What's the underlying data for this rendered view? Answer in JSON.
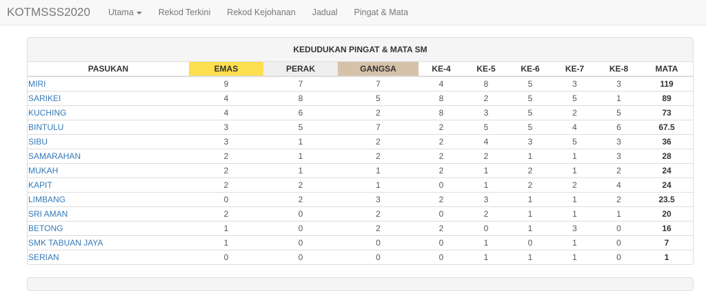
{
  "navbar": {
    "brand": "KOTMSSS2020",
    "items": [
      {
        "label": "Utama",
        "dropdown": true
      },
      {
        "label": "Rekod Terkini"
      },
      {
        "label": "Rekod Kejohanan"
      },
      {
        "label": "Jadual"
      },
      {
        "label": "Pingat & Mata"
      }
    ]
  },
  "panel": {
    "title": "KEDUDUKAN PINGAT & MATA SM",
    "colors": {
      "emas": "#fddf4f",
      "perak": "#eeeeee",
      "gangsa": "#d6c1a9"
    },
    "headers": [
      "PASUKAN",
      "EMAS",
      "PERAK",
      "GANGSA",
      "KE-4",
      "KE-5",
      "KE-6",
      "KE-7",
      "KE-8",
      "MATA"
    ],
    "rows": [
      [
        "MIRI",
        "9",
        "7",
        "7",
        "4",
        "8",
        "5",
        "3",
        "3",
        "119"
      ],
      [
        "SARIKEI",
        "4",
        "8",
        "5",
        "8",
        "2",
        "5",
        "5",
        "1",
        "89"
      ],
      [
        "KUCHING",
        "4",
        "6",
        "2",
        "8",
        "3",
        "5",
        "2",
        "5",
        "73"
      ],
      [
        "BINTULU",
        "3",
        "5",
        "7",
        "2",
        "5",
        "5",
        "4",
        "6",
        "67.5"
      ],
      [
        "SIBU",
        "3",
        "1",
        "2",
        "2",
        "4",
        "3",
        "5",
        "3",
        "36"
      ],
      [
        "SAMARAHAN",
        "2",
        "1",
        "2",
        "2",
        "2",
        "1",
        "1",
        "3",
        "28"
      ],
      [
        "MUKAH",
        "2",
        "1",
        "1",
        "2",
        "1",
        "2",
        "1",
        "2",
        "24"
      ],
      [
        "KAPIT",
        "2",
        "2",
        "1",
        "0",
        "1",
        "2",
        "2",
        "4",
        "24"
      ],
      [
        "LIMBANG",
        "0",
        "2",
        "3",
        "2",
        "3",
        "1",
        "1",
        "2",
        "23.5"
      ],
      [
        "SRI AMAN",
        "2",
        "0",
        "2",
        "0",
        "2",
        "1",
        "1",
        "1",
        "20"
      ],
      [
        "BETONG",
        "1",
        "0",
        "2",
        "2",
        "0",
        "1",
        "3",
        "0",
        "16"
      ],
      [
        "SMK TABUAN JAYA",
        "1",
        "0",
        "0",
        "0",
        "1",
        "0",
        "1",
        "0",
        "7"
      ],
      [
        "SERIAN",
        "0",
        "0",
        "0",
        "0",
        "1",
        "1",
        "1",
        "0",
        "1"
      ]
    ]
  }
}
